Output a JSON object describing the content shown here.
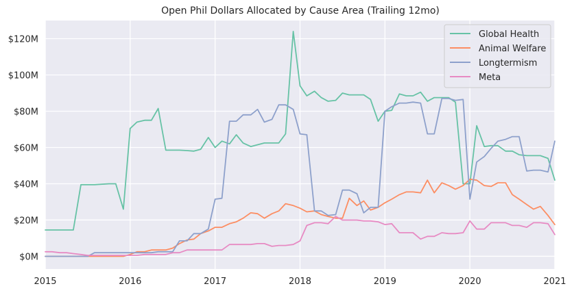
{
  "chart_data": {
    "type": "line",
    "title": "Open Phil Dollars Allocated by Cause Area (Trailing 12mo)",
    "xlabel": "",
    "ylabel": "",
    "xlim": [
      2015.0,
      2021.0
    ],
    "ylim": [
      -7,
      130
    ],
    "grid": true,
    "legend_position": "top-right",
    "x_ticks": [
      2015,
      2016,
      2017,
      2018,
      2019,
      2020,
      2021
    ],
    "x_tick_labels": [
      "2015",
      "2016",
      "2017",
      "2018",
      "2019",
      "2020",
      "2021"
    ],
    "y_ticks": [
      0,
      20,
      40,
      60,
      80,
      100,
      120
    ],
    "y_tick_labels": [
      "$0M",
      "$20M",
      "$40M",
      "$60M",
      "$80M",
      "$100M",
      "$120M"
    ],
    "colors": {
      "Global Health": "#66c2a5",
      "Animal Welfare": "#fc8d62",
      "Longtermism": "#8da0cb",
      "Meta": "#e78ac3",
      "background": "#eaeaf2"
    },
    "series": [
      {
        "name": "Global Health",
        "points": [
          [
            2015.0,
            14.5
          ],
          [
            2015.17,
            14.5
          ],
          [
            2015.33,
            14.5
          ],
          [
            2015.42,
            39.5
          ],
          [
            2015.58,
            39.5
          ],
          [
            2015.75,
            40
          ],
          [
            2015.83,
            40
          ],
          [
            2015.92,
            26
          ],
          [
            2016.0,
            70.5
          ],
          [
            2016.08,
            74
          ],
          [
            2016.17,
            75
          ],
          [
            2016.25,
            75
          ],
          [
            2016.33,
            81.5
          ],
          [
            2016.42,
            58.5
          ],
          [
            2016.5,
            58.5
          ],
          [
            2016.58,
            58.5
          ],
          [
            2016.67,
            58.3
          ],
          [
            2016.75,
            58
          ],
          [
            2016.83,
            59
          ],
          [
            2016.92,
            65.5
          ],
          [
            2017.0,
            60
          ],
          [
            2017.08,
            63.5
          ],
          [
            2017.17,
            62
          ],
          [
            2017.25,
            67
          ],
          [
            2017.33,
            62.5
          ],
          [
            2017.42,
            60.5
          ],
          [
            2017.5,
            61.5
          ],
          [
            2017.58,
            62.5
          ],
          [
            2017.67,
            62.5
          ],
          [
            2017.75,
            62.5
          ],
          [
            2017.83,
            67.5
          ],
          [
            2017.92,
            124
          ],
          [
            2018.0,
            94
          ],
          [
            2018.08,
            88.5
          ],
          [
            2018.17,
            91
          ],
          [
            2018.25,
            87.5
          ],
          [
            2018.33,
            85.5
          ],
          [
            2018.42,
            86
          ],
          [
            2018.5,
            90
          ],
          [
            2018.58,
            89
          ],
          [
            2018.67,
            89
          ],
          [
            2018.75,
            89
          ],
          [
            2018.83,
            86.5
          ],
          [
            2018.92,
            74.5
          ],
          [
            2019.0,
            80
          ],
          [
            2019.08,
            80.5
          ],
          [
            2019.17,
            89.5
          ],
          [
            2019.25,
            88.5
          ],
          [
            2019.33,
            88.5
          ],
          [
            2019.42,
            90.5
          ],
          [
            2019.5,
            85.5
          ],
          [
            2019.58,
            87.5
          ],
          [
            2019.67,
            87.5
          ],
          [
            2019.75,
            87.5
          ],
          [
            2019.83,
            85
          ],
          [
            2019.92,
            40
          ],
          [
            2020.0,
            40
          ],
          [
            2020.08,
            72
          ],
          [
            2020.17,
            60.5
          ],
          [
            2020.25,
            61
          ],
          [
            2020.33,
            61
          ],
          [
            2020.42,
            58
          ],
          [
            2020.5,
            58
          ],
          [
            2020.58,
            56
          ],
          [
            2020.67,
            55.5
          ],
          [
            2020.75,
            55.5
          ],
          [
            2020.83,
            55.5
          ],
          [
            2020.92,
            54
          ],
          [
            2021.0,
            42
          ]
        ]
      },
      {
        "name": "Animal Welfare",
        "points": [
          [
            2015.0,
            0
          ],
          [
            2015.5,
            0
          ],
          [
            2015.92,
            0
          ],
          [
            2016.0,
            1
          ],
          [
            2016.08,
            2.5
          ],
          [
            2016.17,
            2.5
          ],
          [
            2016.25,
            3.5
          ],
          [
            2016.33,
            3.5
          ],
          [
            2016.42,
            3.5
          ],
          [
            2016.5,
            4.5
          ],
          [
            2016.58,
            7
          ],
          [
            2016.67,
            9
          ],
          [
            2016.75,
            9.5
          ],
          [
            2016.83,
            12.5
          ],
          [
            2016.92,
            14
          ],
          [
            2017.0,
            16
          ],
          [
            2017.08,
            16
          ],
          [
            2017.17,
            18
          ],
          [
            2017.25,
            19
          ],
          [
            2017.33,
            21
          ],
          [
            2017.42,
            24
          ],
          [
            2017.5,
            23.5
          ],
          [
            2017.58,
            21
          ],
          [
            2017.67,
            23.5
          ],
          [
            2017.75,
            25
          ],
          [
            2017.83,
            29
          ],
          [
            2017.92,
            28
          ],
          [
            2018.0,
            26.5
          ],
          [
            2018.08,
            24.5
          ],
          [
            2018.17,
            25
          ],
          [
            2018.25,
            23
          ],
          [
            2018.33,
            22
          ],
          [
            2018.42,
            21
          ],
          [
            2018.5,
            21
          ],
          [
            2018.58,
            32
          ],
          [
            2018.67,
            28
          ],
          [
            2018.75,
            30.5
          ],
          [
            2018.83,
            25.5
          ],
          [
            2018.92,
            27
          ],
          [
            2019.0,
            29.5
          ],
          [
            2019.08,
            31.5
          ],
          [
            2019.17,
            34
          ],
          [
            2019.25,
            35.5
          ],
          [
            2019.33,
            35.5
          ],
          [
            2019.42,
            35
          ],
          [
            2019.5,
            42
          ],
          [
            2019.58,
            35
          ],
          [
            2019.67,
            40.5
          ],
          [
            2019.75,
            39
          ],
          [
            2019.83,
            37
          ],
          [
            2019.92,
            39
          ],
          [
            2020.0,
            42.5
          ],
          [
            2020.08,
            42
          ],
          [
            2020.17,
            39
          ],
          [
            2020.25,
            38.5
          ],
          [
            2020.33,
            40.5
          ],
          [
            2020.42,
            40.5
          ],
          [
            2020.5,
            34
          ],
          [
            2020.58,
            31.5
          ],
          [
            2020.67,
            28.5
          ],
          [
            2020.75,
            26
          ],
          [
            2020.83,
            27.5
          ],
          [
            2020.92,
            22.5
          ],
          [
            2021.0,
            17.5
          ]
        ]
      },
      {
        "name": "Longtermism",
        "points": [
          [
            2015.0,
            0
          ],
          [
            2015.25,
            0
          ],
          [
            2015.5,
            0
          ],
          [
            2015.58,
            2
          ],
          [
            2015.75,
            2
          ],
          [
            2015.92,
            2
          ],
          [
            2016.0,
            2
          ],
          [
            2016.08,
            2
          ],
          [
            2016.17,
            2
          ],
          [
            2016.25,
            2
          ],
          [
            2016.33,
            2.5
          ],
          [
            2016.42,
            2.5
          ],
          [
            2016.5,
            2.5
          ],
          [
            2016.58,
            8.5
          ],
          [
            2016.67,
            8.5
          ],
          [
            2016.75,
            12.5
          ],
          [
            2016.83,
            12.5
          ],
          [
            2016.92,
            15
          ],
          [
            2017.0,
            31.5
          ],
          [
            2017.08,
            32
          ],
          [
            2017.17,
            74.5
          ],
          [
            2017.25,
            74.5
          ],
          [
            2017.33,
            78
          ],
          [
            2017.42,
            78
          ],
          [
            2017.5,
            81
          ],
          [
            2017.58,
            74
          ],
          [
            2017.67,
            75.5
          ],
          [
            2017.75,
            83.5
          ],
          [
            2017.83,
            83.5
          ],
          [
            2017.92,
            81
          ],
          [
            2018.0,
            67.5
          ],
          [
            2018.08,
            67
          ],
          [
            2018.17,
            25
          ],
          [
            2018.25,
            25
          ],
          [
            2018.33,
            22.5
          ],
          [
            2018.42,
            23
          ],
          [
            2018.5,
            36.5
          ],
          [
            2018.58,
            36.5
          ],
          [
            2018.67,
            34.5
          ],
          [
            2018.75,
            24
          ],
          [
            2018.83,
            27
          ],
          [
            2018.92,
            27
          ],
          [
            2019.0,
            80
          ],
          [
            2019.08,
            82.5
          ],
          [
            2019.17,
            84.5
          ],
          [
            2019.25,
            84.5
          ],
          [
            2019.33,
            85
          ],
          [
            2019.42,
            84.5
          ],
          [
            2019.5,
            67.5
          ],
          [
            2019.58,
            67.5
          ],
          [
            2019.67,
            87
          ],
          [
            2019.75,
            87
          ],
          [
            2019.83,
            86
          ],
          [
            2019.92,
            86.5
          ],
          [
            2020.0,
            31.5
          ],
          [
            2020.08,
            52
          ],
          [
            2020.17,
            55
          ],
          [
            2020.25,
            59.5
          ],
          [
            2020.33,
            63.5
          ],
          [
            2020.42,
            64.5
          ],
          [
            2020.5,
            66
          ],
          [
            2020.58,
            66
          ],
          [
            2020.67,
            47
          ],
          [
            2020.75,
            47.5
          ],
          [
            2020.83,
            47.5
          ],
          [
            2020.92,
            46.5
          ],
          [
            2021.0,
            63.5
          ]
        ]
      },
      {
        "name": "Meta",
        "points": [
          [
            2015.0,
            2.5
          ],
          [
            2015.08,
            2.5
          ],
          [
            2015.17,
            2
          ],
          [
            2015.25,
            2
          ],
          [
            2015.33,
            1.5
          ],
          [
            2015.42,
            1
          ],
          [
            2015.5,
            0.5
          ],
          [
            2015.58,
            0.5
          ],
          [
            2015.75,
            0.5
          ],
          [
            2015.92,
            0.5
          ],
          [
            2016.0,
            0.5
          ],
          [
            2016.08,
            0.5
          ],
          [
            2016.17,
            1
          ],
          [
            2016.25,
            1
          ],
          [
            2016.33,
            1
          ],
          [
            2016.42,
            1
          ],
          [
            2016.5,
            2
          ],
          [
            2016.58,
            2
          ],
          [
            2016.67,
            3.5
          ],
          [
            2016.75,
            3.5
          ],
          [
            2016.83,
            3.5
          ],
          [
            2016.92,
            3.5
          ],
          [
            2017.0,
            3.5
          ],
          [
            2017.08,
            3.5
          ],
          [
            2017.17,
            6.5
          ],
          [
            2017.25,
            6.5
          ],
          [
            2017.33,
            6.5
          ],
          [
            2017.42,
            6.5
          ],
          [
            2017.5,
            7
          ],
          [
            2017.58,
            7
          ],
          [
            2017.67,
            5.5
          ],
          [
            2017.75,
            6
          ],
          [
            2017.83,
            6
          ],
          [
            2017.92,
            6.5
          ],
          [
            2018.0,
            8.5
          ],
          [
            2018.08,
            17
          ],
          [
            2018.17,
            18.5
          ],
          [
            2018.25,
            18.5
          ],
          [
            2018.33,
            18
          ],
          [
            2018.42,
            22
          ],
          [
            2018.5,
            20
          ],
          [
            2018.58,
            20
          ],
          [
            2018.67,
            20
          ],
          [
            2018.75,
            19.5
          ],
          [
            2018.83,
            19.5
          ],
          [
            2018.92,
            19
          ],
          [
            2019.0,
            17.5
          ],
          [
            2019.08,
            18
          ],
          [
            2019.17,
            13
          ],
          [
            2019.25,
            13
          ],
          [
            2019.33,
            13
          ],
          [
            2019.42,
            9.5
          ],
          [
            2019.5,
            11
          ],
          [
            2019.58,
            11
          ],
          [
            2019.67,
            13
          ],
          [
            2019.75,
            12.5
          ],
          [
            2019.83,
            12.5
          ],
          [
            2019.92,
            13
          ],
          [
            2020.0,
            19.5
          ],
          [
            2020.08,
            15
          ],
          [
            2020.17,
            15
          ],
          [
            2020.25,
            18.5
          ],
          [
            2020.33,
            18.5
          ],
          [
            2020.42,
            18.5
          ],
          [
            2020.5,
            17
          ],
          [
            2020.58,
            17
          ],
          [
            2020.67,
            16
          ],
          [
            2020.75,
            18.5
          ],
          [
            2020.83,
            18.5
          ],
          [
            2020.92,
            18
          ],
          [
            2021.0,
            12
          ]
        ]
      }
    ]
  }
}
